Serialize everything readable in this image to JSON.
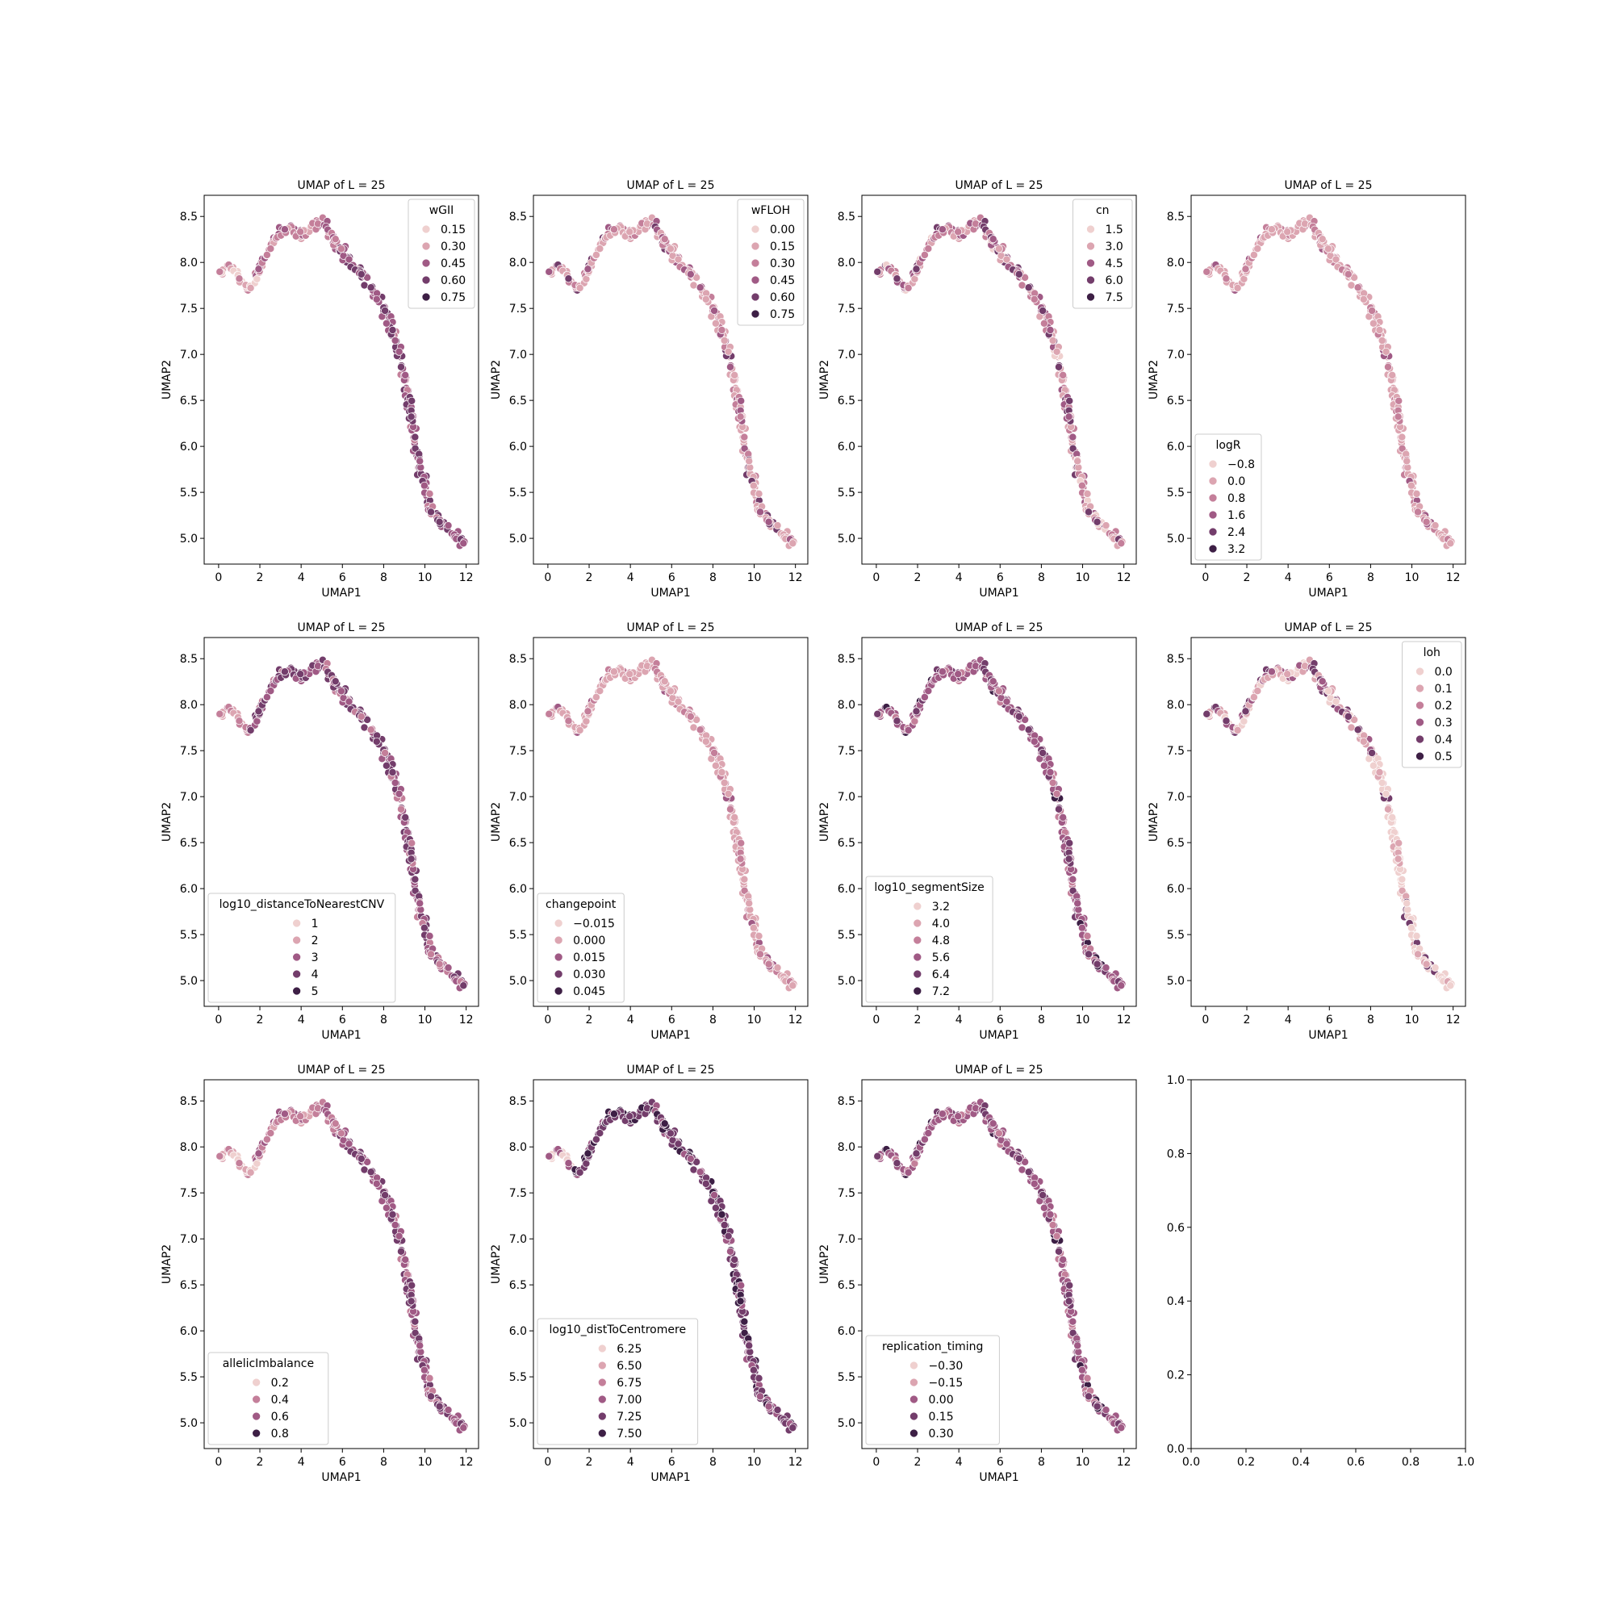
{
  "chart_data": [
    {
      "type": "scatter",
      "title": "UMAP of L = 25",
      "xlabel": "UMAP1",
      "ylabel": "UMAP2",
      "xlim": [
        -0.7,
        12.6
      ],
      "ylim": [
        4.72,
        8.73
      ],
      "xticks": [
        "0",
        "2",
        "4",
        "6",
        "8",
        "10",
        "12"
      ],
      "yticks": [
        "5.0",
        "5.5",
        "6.0",
        "6.5",
        "7.0",
        "7.5",
        "8.0",
        "8.5"
      ],
      "legend": {
        "title": "wGII",
        "position": "top-right",
        "entries": [
          "0.15",
          "0.30",
          "0.45",
          "0.60",
          "0.75"
        ]
      },
      "color_pattern": "dark-tail"
    },
    {
      "type": "scatter",
      "title": "UMAP of L = 25",
      "xlabel": "UMAP1",
      "ylabel": "UMAP2",
      "xlim": [
        -0.7,
        12.6
      ],
      "ylim": [
        4.72,
        8.73
      ],
      "xticks": [
        "0",
        "2",
        "4",
        "6",
        "8",
        "10",
        "12"
      ],
      "yticks": [
        "5.0",
        "5.5",
        "6.0",
        "6.5",
        "7.0",
        "7.5",
        "8.0",
        "8.5"
      ],
      "legend": {
        "title": "wFLOH",
        "position": "top-right",
        "entries": [
          "0.00",
          "0.15",
          "0.30",
          "0.45",
          "0.60",
          "0.75"
        ]
      },
      "color_pattern": "light-mixed"
    },
    {
      "type": "scatter",
      "title": "UMAP of L = 25",
      "xlabel": "UMAP1",
      "ylabel": "UMAP2",
      "xlim": [
        -0.7,
        12.6
      ],
      "ylim": [
        4.72,
        8.73
      ],
      "xticks": [
        "0",
        "2",
        "4",
        "6",
        "8",
        "10",
        "12"
      ],
      "yticks": [
        "5.0",
        "5.5",
        "6.0",
        "6.5",
        "7.0",
        "7.5",
        "8.0",
        "8.5"
      ],
      "legend": {
        "title": "cn",
        "position": "top-right",
        "entries": [
          "1.5",
          "3.0",
          "4.5",
          "6.0",
          "7.5"
        ]
      },
      "color_pattern": "mixed"
    },
    {
      "type": "scatter",
      "title": "UMAP of L = 25",
      "xlabel": "UMAP1",
      "ylabel": "UMAP2",
      "xlim": [
        -0.7,
        12.6
      ],
      "ylim": [
        4.72,
        8.73
      ],
      "xticks": [
        "0",
        "2",
        "4",
        "6",
        "8",
        "10",
        "12"
      ],
      "yticks": [
        "5.0",
        "5.5",
        "6.0",
        "6.5",
        "7.0",
        "7.5",
        "8.0",
        "8.5"
      ],
      "legend": {
        "title": "logR",
        "position": "lower-left",
        "entries": [
          "−0.8",
          "0.0",
          "0.8",
          "1.6",
          "2.4",
          "3.2"
        ]
      },
      "color_pattern": "uniform-light"
    },
    {
      "type": "scatter",
      "title": "UMAP of L = 25",
      "xlabel": "UMAP1",
      "ylabel": "UMAP2",
      "xlim": [
        -0.7,
        12.6
      ],
      "ylim": [
        4.72,
        8.73
      ],
      "xticks": [
        "0",
        "2",
        "4",
        "6",
        "8",
        "10",
        "12"
      ],
      "yticks": [
        "5.0",
        "5.5",
        "6.0",
        "6.5",
        "7.0",
        "7.5",
        "8.0",
        "8.5"
      ],
      "legend": {
        "title": "log10_distanceToNearestCNV",
        "position": "lower-left",
        "entries": [
          "1",
          "2",
          "3",
          "4",
          "5"
        ]
      },
      "color_pattern": "dark"
    },
    {
      "type": "scatter",
      "title": "UMAP of L = 25",
      "xlabel": "UMAP1",
      "ylabel": "UMAP2",
      "xlim": [
        -0.7,
        12.6
      ],
      "ylim": [
        4.72,
        8.73
      ],
      "xticks": [
        "0",
        "2",
        "4",
        "6",
        "8",
        "10",
        "12"
      ],
      "yticks": [
        "5.0",
        "5.5",
        "6.0",
        "6.5",
        "7.0",
        "7.5",
        "8.0",
        "8.5"
      ],
      "legend": {
        "title": "changepoint",
        "position": "lower-left",
        "entries": [
          "−0.015",
          "0.000",
          "0.015",
          "0.030",
          "0.045"
        ]
      },
      "color_pattern": "uniform-light"
    },
    {
      "type": "scatter",
      "title": "UMAP of L = 25",
      "xlabel": "UMAP1",
      "ylabel": "UMAP2",
      "xlim": [
        -0.7,
        12.6
      ],
      "ylim": [
        4.72,
        8.73
      ],
      "xticks": [
        "0",
        "2",
        "4",
        "6",
        "8",
        "10",
        "12"
      ],
      "yticks": [
        "5.0",
        "5.5",
        "6.0",
        "6.5",
        "7.0",
        "7.5",
        "8.0",
        "8.5"
      ],
      "legend": {
        "title": "log10_segmentSize",
        "position": "lower-left",
        "entries": [
          "3.2",
          "4.0",
          "4.8",
          "5.6",
          "6.4",
          "7.2"
        ]
      },
      "color_pattern": "medium"
    },
    {
      "type": "scatter",
      "title": "UMAP of L = 25",
      "xlabel": "UMAP1",
      "ylabel": "UMAP2",
      "xlim": [
        -0.7,
        12.6
      ],
      "ylim": [
        4.72,
        8.73
      ],
      "xticks": [
        "0",
        "2",
        "4",
        "6",
        "8",
        "10",
        "12"
      ],
      "yticks": [
        "5.0",
        "5.5",
        "6.0",
        "6.5",
        "7.0",
        "7.5",
        "8.0",
        "8.5"
      ],
      "legend": {
        "title": "loh",
        "position": "top-right",
        "entries": [
          "0.0",
          "0.1",
          "0.2",
          "0.3",
          "0.4",
          "0.5"
        ]
      },
      "color_pattern": "light-tail"
    },
    {
      "type": "scatter",
      "title": "UMAP of L = 25",
      "xlabel": "UMAP1",
      "ylabel": "UMAP2",
      "xlim": [
        -0.7,
        12.6
      ],
      "ylim": [
        4.72,
        8.73
      ],
      "xticks": [
        "0",
        "2",
        "4",
        "6",
        "8",
        "10",
        "12"
      ],
      "yticks": [
        "5.0",
        "5.5",
        "6.0",
        "6.5",
        "7.0",
        "7.5",
        "8.0",
        "8.5"
      ],
      "legend": {
        "title": "allelicImbalance",
        "position": "lower-left",
        "entries": [
          "0.2",
          "0.4",
          "0.6",
          "0.8"
        ]
      },
      "color_pattern": "dark-tail"
    },
    {
      "type": "scatter",
      "title": "UMAP of L = 25",
      "xlabel": "UMAP1",
      "ylabel": "UMAP2",
      "xlim": [
        -0.7,
        12.6
      ],
      "ylim": [
        4.72,
        8.73
      ],
      "xticks": [
        "0",
        "2",
        "4",
        "6",
        "8",
        "10",
        "12"
      ],
      "yticks": [
        "5.0",
        "5.5",
        "6.0",
        "6.5",
        "7.0",
        "7.5",
        "8.0",
        "8.5"
      ],
      "legend": {
        "title": "log10_distToCentromere",
        "position": "lower-left",
        "entries": [
          "6.25",
          "6.50",
          "6.75",
          "7.00",
          "7.25",
          "7.50"
        ]
      },
      "color_pattern": "very-dark"
    },
    {
      "type": "scatter",
      "title": "UMAP of L = 25",
      "xlabel": "UMAP1",
      "ylabel": "UMAP2",
      "xlim": [
        -0.7,
        12.6
      ],
      "ylim": [
        4.72,
        8.73
      ],
      "xticks": [
        "0",
        "2",
        "4",
        "6",
        "8",
        "10",
        "12"
      ],
      "yticks": [
        "5.0",
        "5.5",
        "6.0",
        "6.5",
        "7.0",
        "7.5",
        "8.0",
        "8.5"
      ],
      "legend": {
        "title": "replication_timing",
        "position": "lower-left",
        "entries": [
          "−0.30",
          "−0.15",
          "0.00",
          "0.15",
          "0.30"
        ]
      },
      "color_pattern": "medium"
    },
    {
      "type": "empty",
      "title": "",
      "xlabel": "",
      "ylabel": "",
      "xlim": [
        0,
        1
      ],
      "ylim": [
        0,
        1
      ],
      "xticks": [
        "0.0",
        "0.2",
        "0.4",
        "0.6",
        "0.8",
        "1.0"
      ],
      "yticks": [
        "0.0",
        "0.2",
        "0.4",
        "0.6",
        "0.8",
        "1.0"
      ]
    }
  ],
  "palette": [
    "#efd0cf",
    "#dca5b1",
    "#c47f9a",
    "#a05a85",
    "#733d6b",
    "#3d1f45"
  ],
  "curve": {
    "description": "UMAP embedding shape shared by all panels",
    "points": [
      [
        0,
        7.85
      ],
      [
        0.4,
        7.98
      ],
      [
        0.8,
        7.9
      ],
      [
        1.2,
        7.75
      ],
      [
        1.5,
        7.7
      ],
      [
        1.9,
        7.9
      ],
      [
        2.3,
        8.05
      ],
      [
        2.7,
        8.25
      ],
      [
        3.1,
        8.35
      ],
      [
        3.6,
        8.35
      ],
      [
        4.1,
        8.3
      ],
      [
        4.6,
        8.4
      ],
      [
        5.0,
        8.45
      ],
      [
        5.4,
        8.3
      ],
      [
        5.9,
        8.15
      ],
      [
        6.4,
        8.0
      ],
      [
        6.9,
        7.9
      ],
      [
        7.4,
        7.75
      ],
      [
        7.9,
        7.55
      ],
      [
        8.3,
        7.35
      ],
      [
        8.6,
        7.15
      ],
      [
        8.9,
        6.9
      ],
      [
        9.1,
        6.6
      ],
      [
        9.3,
        6.35
      ],
      [
        9.5,
        6.1
      ],
      [
        9.7,
        5.85
      ],
      [
        9.95,
        5.6
      ],
      [
        10.25,
        5.35
      ],
      [
        10.6,
        5.2
      ],
      [
        11.0,
        5.1
      ],
      [
        11.5,
        5.0
      ],
      [
        11.9,
        4.95
      ]
    ]
  }
}
